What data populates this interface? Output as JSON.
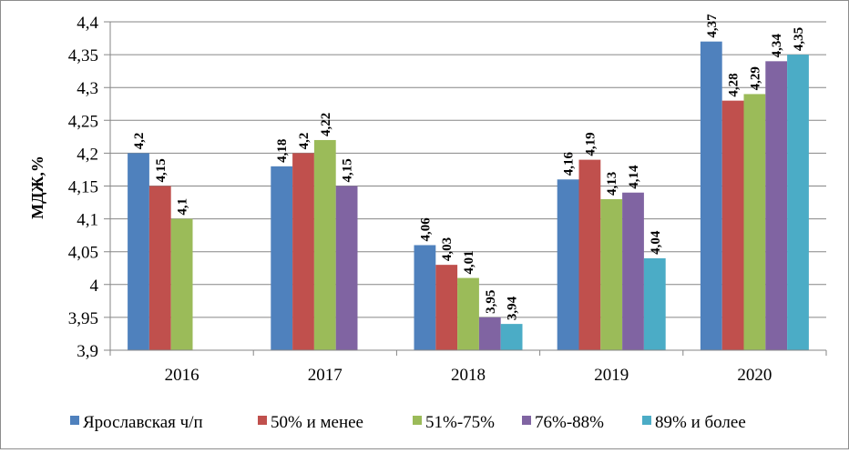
{
  "chart_data": {
    "type": "bar",
    "title": "",
    "xlabel": "",
    "ylabel": "МДЖ,%",
    "ylim": [
      3.9,
      4.4
    ],
    "ytick_step": 0.05,
    "ytick_labels": [
      "3,9",
      "3,95",
      "4",
      "4,05",
      "4,1",
      "4,15",
      "4,2",
      "4,25",
      "4,3",
      "4,35",
      "4,4"
    ],
    "grid": true,
    "legend_position": "bottom",
    "categories": [
      "2016",
      "2017",
      "2018",
      "2019",
      "2020"
    ],
    "series": [
      {
        "name": "Ярославская ч/п",
        "color": "#4F81BD",
        "values": [
          4.2,
          4.18,
          4.06,
          4.16,
          4.37
        ],
        "labels": [
          "4,2",
          "4,18",
          "4,06",
          "4,16",
          "4,37"
        ]
      },
      {
        "name": "50% и менее",
        "color": "#C0504D",
        "values": [
          4.15,
          4.2,
          4.03,
          4.19,
          4.28
        ],
        "labels": [
          "4,15",
          "4,2",
          "4,03",
          "4,19",
          "4,28"
        ]
      },
      {
        "name": "51%-75%",
        "color": "#9BBB59",
        "values": [
          4.1,
          4.22,
          4.01,
          4.13,
          4.29
        ],
        "labels": [
          "4,1",
          "4,22",
          "4,01",
          "4,13",
          "4,29"
        ]
      },
      {
        "name": "76%-88%",
        "color": "#8064A2",
        "values": [
          null,
          4.15,
          3.95,
          4.14,
          4.34
        ],
        "labels": [
          null,
          "4,15",
          "3,95",
          "4,14",
          "4,34"
        ]
      },
      {
        "name": "89% и более",
        "color": "#4BACC6",
        "values": [
          null,
          null,
          3.94,
          4.04,
          4.35
        ],
        "labels": [
          null,
          null,
          "3,94",
          "4,04",
          "4,35"
        ]
      }
    ]
  }
}
